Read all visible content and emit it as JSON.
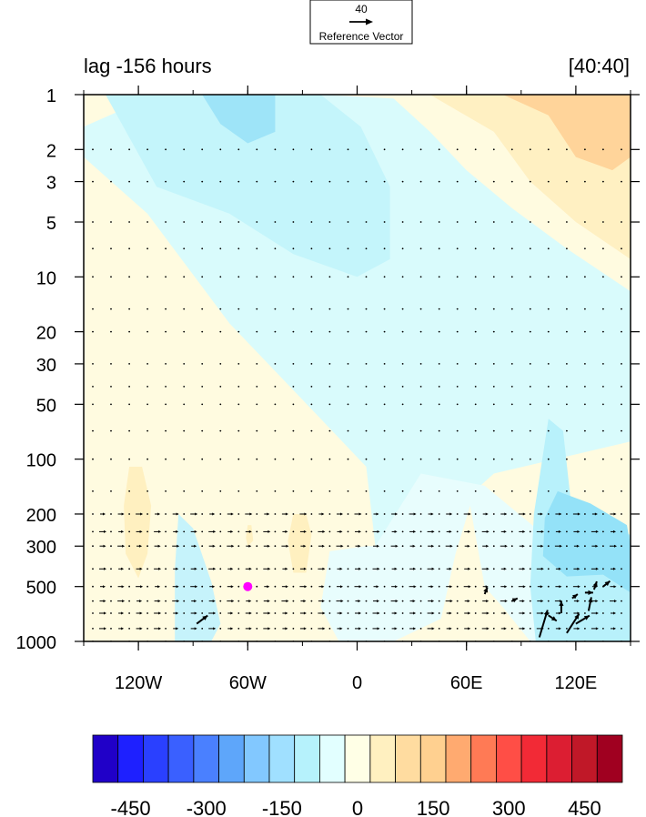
{
  "chart_data": {
    "type": "contour-vector",
    "title_left": "lag -156 hours",
    "title_right": "[40:40]",
    "reference_vector": {
      "magnitude": "40",
      "label": "Reference Vector"
    },
    "x_ticks": [
      {
        "value": -120,
        "label": "120W"
      },
      {
        "value": -60,
        "label": "60W"
      },
      {
        "value": 0,
        "label": "0"
      },
      {
        "value": 60,
        "label": "60E"
      },
      {
        "value": 120,
        "label": "120E"
      }
    ],
    "y_ticks": [
      {
        "value": 1,
        "label": "1"
      },
      {
        "value": 2,
        "label": "2"
      },
      {
        "value": 3,
        "label": "3"
      },
      {
        "value": 5,
        "label": "5"
      },
      {
        "value": 10,
        "label": "10"
      },
      {
        "value": 20,
        "label": "20"
      },
      {
        "value": 30,
        "label": "30"
      },
      {
        "value": 50,
        "label": "50"
      },
      {
        "value": 100,
        "label": "100"
      },
      {
        "value": 200,
        "label": "200"
      },
      {
        "value": 300,
        "label": "300"
      },
      {
        "value": 500,
        "label": "500"
      },
      {
        "value": 1000,
        "label": "1000"
      }
    ],
    "xlim": [
      -150,
      150
    ],
    "ylim": [
      1,
      1000
    ],
    "y_scale": "log",
    "y_reversed": true,
    "marker": {
      "lon": -60,
      "p": 500,
      "color": "#ff00ff"
    },
    "colorbar": {
      "levels": [
        -525,
        -475,
        -425,
        -375,
        -325,
        -275,
        -225,
        -175,
        -125,
        -75,
        -25,
        25,
        75,
        125,
        175,
        225,
        275,
        325,
        375,
        425,
        475,
        525
      ],
      "colors": [
        "#2000c8",
        "#1e20ff",
        "#2a40ff",
        "#3a60ff",
        "#4a80ff",
        "#5ea6fa",
        "#82c8ff",
        "#a0e0ff",
        "#b6f2fc",
        "#e2ffff",
        "#ffffe6",
        "#fff0c0",
        "#ffdca0",
        "#ffd090",
        "#ffaa70",
        "#ff7a55",
        "#ff4e46",
        "#f22a36",
        "#dc1e32",
        "#c01828",
        "#a00020"
      ],
      "labels": [
        {
          "value": -450,
          "label": "-450"
        },
        {
          "value": -300,
          "label": "-300"
        },
        {
          "value": -150,
          "label": "-150"
        },
        {
          "value": 0,
          "label": "0"
        },
        {
          "value": 150,
          "label": "150"
        },
        {
          "value": 300,
          "label": "300"
        },
        {
          "value": 450,
          "label": "450"
        }
      ]
    },
    "contour_regions": [
      {
        "name": "cyan-upper-center",
        "color": "#d9fbfc",
        "points": [
          [
            -150,
            1.5
          ],
          [
            -110,
            1
          ],
          [
            -20,
            1
          ],
          [
            20,
            1.05
          ],
          [
            40,
            1.6
          ],
          [
            60,
            2.6
          ],
          [
            85,
            4.2
          ],
          [
            115,
            7
          ],
          [
            150,
            12
          ],
          [
            150,
            80
          ],
          [
            75,
            120
          ],
          [
            48,
            210
          ],
          [
            38,
            300
          ],
          [
            28,
            330
          ],
          [
            10,
            300
          ],
          [
            5,
            110
          ],
          [
            -20,
            60
          ],
          [
            -70,
            18
          ],
          [
            -115,
            4.5
          ],
          [
            -150,
            2.2
          ]
        ]
      },
      {
        "name": "cyan-light-lower",
        "color": "#e8fdfd",
        "points": [
          [
            10,
            300
          ],
          [
            35,
            120
          ],
          [
            70,
            140
          ],
          [
            110,
            300
          ],
          [
            150,
            300
          ],
          [
            150,
            1000
          ],
          [
            95,
            1000
          ],
          [
            80,
            650
          ],
          [
            70,
            500
          ],
          [
            62,
            180
          ],
          [
            54,
            330
          ],
          [
            46,
            750
          ],
          [
            20,
            1000
          ],
          [
            -10,
            1000
          ],
          [
            -20,
            650
          ],
          [
            -15,
            320
          ],
          [
            5,
            300
          ]
        ]
      },
      {
        "name": "cyan-mid-upper",
        "color": "#c4f5fb",
        "points": [
          [
            -90,
            1
          ],
          [
            -20,
            1
          ],
          [
            2,
            1.5
          ],
          [
            18,
            3.2
          ],
          [
            18,
            8
          ],
          [
            0,
            10
          ],
          [
            -35,
            7.5
          ],
          [
            -70,
            4.5
          ],
          [
            -110,
            3.2
          ],
          [
            -138,
            1
          ]
        ]
      },
      {
        "name": "cyan-deep-upper",
        "color": "#9ee4f8",
        "points": [
          [
            -85,
            1
          ],
          [
            -45,
            1
          ],
          [
            -45,
            1.6
          ],
          [
            -60,
            1.85
          ],
          [
            -75,
            1.45
          ]
        ]
      },
      {
        "name": "cyan-west-lower",
        "color": "#c6f3fb",
        "points": [
          [
            -98,
            200
          ],
          [
            -90,
            240
          ],
          [
            -80,
            470
          ],
          [
            -75,
            800
          ],
          [
            -80,
            1000
          ],
          [
            -100,
            1000
          ],
          [
            -100,
            400
          ]
        ]
      },
      {
        "name": "cyan-east-mid",
        "color": "#b8f1fb",
        "points": [
          [
            105,
            60
          ],
          [
            113,
            70
          ],
          [
            118,
            200
          ],
          [
            135,
            240
          ],
          [
            150,
            260
          ],
          [
            150,
            1000
          ],
          [
            98,
            1000
          ],
          [
            95,
            500
          ],
          [
            97,
            200
          ]
        ]
      },
      {
        "name": "cyan-east-deep",
        "color": "#94e2f8",
        "points": [
          [
            110,
            150
          ],
          [
            128,
            175
          ],
          [
            148,
            230
          ],
          [
            150,
            300
          ],
          [
            150,
            540
          ],
          [
            135,
            430
          ],
          [
            115,
            440
          ],
          [
            102,
            340
          ],
          [
            103,
            210
          ]
        ]
      },
      {
        "name": "yellow-top-right",
        "color": "#fff0c2",
        "points": [
          [
            40,
            1
          ],
          [
            150,
            1
          ],
          [
            150,
            8
          ],
          [
            120,
            5
          ],
          [
            95,
            3
          ],
          [
            75,
            1.6
          ]
        ]
      },
      {
        "name": "peach-top-right",
        "color": "#ffd49a",
        "points": [
          [
            80,
            1
          ],
          [
            150,
            1
          ],
          [
            150,
            2.2
          ],
          [
            140,
            2.6
          ],
          [
            120,
            2.2
          ],
          [
            105,
            1.3
          ]
        ]
      },
      {
        "name": "yellow-west-blob",
        "color": "#fff0c0",
        "points": [
          [
            -125,
            110
          ],
          [
            -118,
            110
          ],
          [
            -113,
            180
          ],
          [
            -115,
            330
          ],
          [
            -120,
            450
          ],
          [
            -127,
            330
          ],
          [
            -128,
            180
          ]
        ]
      },
      {
        "name": "yellow-center-blob",
        "color": "#fff0c0",
        "points": [
          [
            -35,
            200
          ],
          [
            -28,
            200
          ],
          [
            -25,
            260
          ],
          [
            -28,
            420
          ],
          [
            -35,
            420
          ],
          [
            -38,
            280
          ]
        ]
      },
      {
        "name": "yellow-small-blob",
        "color": "#fff0c0",
        "points": [
          [
            -60,
            230
          ],
          [
            -58,
            230
          ],
          [
            -57,
            280
          ],
          [
            -60,
            300
          ],
          [
            -61,
            270
          ]
        ]
      }
    ],
    "vectors": [
      {
        "lon": -88,
        "p": 800,
        "u": 8,
        "v": 6
      },
      {
        "lon": 100,
        "p": 950,
        "u": 6,
        "v": 20
      },
      {
        "lon": 115,
        "p": 900,
        "u": 9,
        "v": 14
      },
      {
        "lon": 120,
        "p": 800,
        "u": 10,
        "v": 6
      },
      {
        "lon": 105,
        "p": 720,
        "u": 6,
        "v": -4
      },
      {
        "lon": 112,
        "p": 700,
        "u": 0,
        "v": 9
      },
      {
        "lon": 127,
        "p": 680,
        "u": 2,
        "v": 10
      },
      {
        "lon": 130,
        "p": 520,
        "u": 2,
        "v": 6
      },
      {
        "lon": 125,
        "p": 540,
        "u": 6,
        "v": 0
      },
      {
        "lon": 118,
        "p": 580,
        "u": 4,
        "v": 3
      },
      {
        "lon": 70,
        "p": 550,
        "u": 2,
        "v": 5
      },
      {
        "lon": 85,
        "p": 600,
        "u": 4,
        "v": 2
      },
      {
        "lon": 135,
        "p": 500,
        "u": 5,
        "v": 4
      }
    ]
  }
}
